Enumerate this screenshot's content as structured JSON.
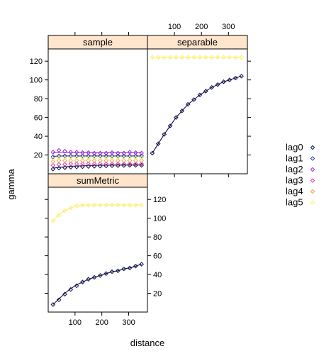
{
  "chart_data": {
    "type": "line",
    "xlabel": "distance",
    "ylabel": "gamma",
    "xlim": [
      0,
      370
    ],
    "ylim": [
      0,
      133
    ],
    "x_ticks": [
      100,
      200,
      300
    ],
    "y_ticks": [
      20,
      40,
      60,
      80,
      100,
      120
    ],
    "grid": false,
    "legend_position": "right",
    "legend": [
      {
        "name": "lag0",
        "color": "#0e0e4a"
      },
      {
        "name": "lag1",
        "color": "#2b3aa0"
      },
      {
        "name": "lag2",
        "color": "#9d2be0"
      },
      {
        "name": "lag3",
        "color": "#e23aa8"
      },
      {
        "name": "lag4",
        "color": "#f5a05a"
      },
      {
        "name": "lag5",
        "color": "#f7f070"
      }
    ],
    "panels": [
      {
        "name": "sample",
        "x": [
          18,
          40,
          62,
          84,
          106,
          128,
          150,
          172,
          194,
          216,
          238,
          260,
          282,
          304,
          326,
          348
        ],
        "series": [
          {
            "name": "lag0",
            "values": [
              5,
              6,
              6.5,
              7,
              7.3,
              7.6,
              7.8,
              8,
              8.2,
              8.4,
              8.6,
              8.7,
              8.8,
              9,
              9,
              9
            ]
          },
          {
            "name": "lag1",
            "values": [
              18,
              19,
              19,
              19,
              19,
              19,
              19,
              19,
              19,
              19,
              19,
              19,
              19,
              19,
              19,
              19
            ]
          },
          {
            "name": "lag2",
            "values": [
              23,
              25,
              24,
              23,
              23,
              22.5,
              22.5,
              22,
              22,
              22,
              22.5,
              22,
              22,
              23,
              22.5,
              22
            ]
          },
          {
            "name": "lag3",
            "values": [
              9,
              10,
              10,
              10.5,
              10.5,
              10.5,
              10.5,
              10.5,
              10.5,
              10.5,
              10.5,
              10.5,
              10.5,
              10.5,
              10.5,
              10.5
            ]
          },
          {
            "name": "lag4",
            "values": [
              13,
              14,
              14,
              14,
              14,
              14,
              14,
              14,
              14,
              14,
              14,
              14,
              14,
              14,
              14,
              14
            ]
          },
          {
            "name": "lag5",
            "values": [
              16,
              17,
              17,
              17,
              17,
              17,
              17,
              17,
              17,
              17,
              17,
              17,
              17,
              17,
              17,
              17
            ]
          }
        ],
        "model_lines": [
          {
            "color": "#0e0e4a",
            "values": [
              6,
              6.8,
              7.4,
              7.9,
              8.2,
              8.5,
              8.7,
              8.9,
              9,
              9.1,
              9.2,
              9.3,
              9.3,
              9.4,
              9.4,
              9.4
            ]
          },
          {
            "color": "#2b3aa0",
            "values": [
              18.5,
              18.8,
              19,
              19,
              19,
              19,
              19,
              19,
              19,
              19,
              19,
              19,
              19,
              19,
              19,
              19
            ]
          },
          {
            "color": "#9d2be0",
            "values": [
              22.5,
              22.6,
              22.6,
              22.6,
              22.6,
              22.6,
              22.6,
              22.6,
              22.6,
              22.6,
              22.6,
              22.6,
              22.6,
              22.6,
              22.6,
              22.6
            ]
          }
        ]
      },
      {
        "name": "separable",
        "x": [
          18,
          40,
          62,
          84,
          106,
          128,
          150,
          172,
          194,
          216,
          238,
          260,
          282,
          304,
          326,
          348
        ],
        "series": [
          {
            "name": "lag0",
            "values": [
              22,
              32,
              42,
              51,
              60,
              67,
              74,
              79,
              84,
              88,
              92,
              95,
              98,
              100,
              102,
              104
            ]
          },
          {
            "name": "lag5",
            "values": [
              124,
              124,
              124,
              124,
              124,
              124,
              124,
              124,
              124,
              124,
              124,
              124,
              124,
              124,
              124,
              124
            ]
          }
        ],
        "model_lines": [
          {
            "color": "#0e0e4a",
            "values": [
              22,
              32,
              42,
              51,
              60,
              67,
              74,
              79,
              84,
              88,
              92,
              95,
              98,
              100,
              102,
              104
            ]
          },
          {
            "color": "#f7f070",
            "values": [
              124,
              124,
              124,
              124,
              124,
              124,
              124,
              124,
              124,
              124,
              124,
              124,
              124,
              124,
              124,
              124
            ]
          }
        ]
      },
      {
        "name": "sumMetric",
        "x": [
          18,
          40,
          62,
          84,
          106,
          128,
          150,
          172,
          194,
          216,
          238,
          260,
          282,
          304,
          326,
          348
        ],
        "series": [
          {
            "name": "lag0",
            "values": [
              8,
              13,
              19,
              24,
              28,
              32,
              35,
              37,
              39,
              41,
              43,
              44,
              46,
              47,
              49,
              51
            ]
          },
          {
            "name": "lag5",
            "values": [
              97,
              103,
              108,
              111,
              113,
              114,
              114,
              114,
              114,
              114,
              114,
              114,
              114,
              114,
              114,
              114
            ]
          }
        ],
        "model_lines": [
          {
            "color": "#0e0e4a",
            "values": [
              8,
              14,
              20,
              25,
              29,
              32,
              35,
              37,
              39,
              41,
              43,
              44,
              46,
              47,
              49,
              51
            ]
          },
          {
            "color": "#f7f070",
            "values": [
              97,
              104,
              108,
              111,
              113,
              114,
              114,
              114,
              114,
              114,
              114,
              114,
              114,
              114,
              114,
              114
            ]
          }
        ]
      }
    ]
  }
}
